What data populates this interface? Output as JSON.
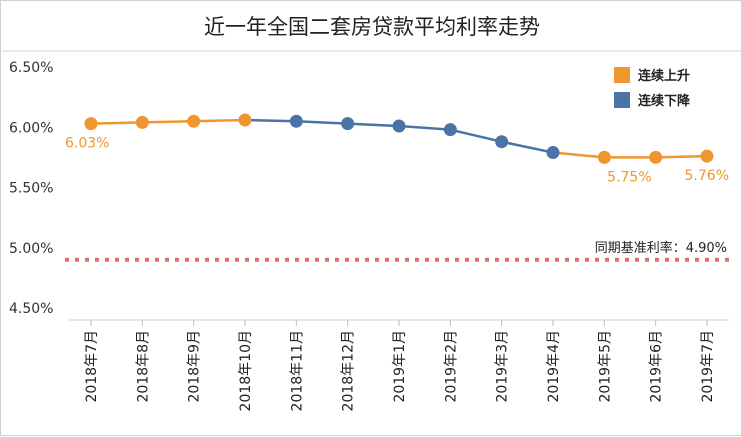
{
  "chart_data": {
    "type": "line",
    "title": "近一年全国二套房贷款平均利率走势",
    "categories": [
      "2018年7月",
      "2018年8月",
      "2018年9月",
      "2018年10月",
      "2018年11月",
      "2018年12月",
      "2019年1月",
      "2019年2月",
      "2019年3月",
      "2019年4月",
      "2019年5月",
      "2019年6月",
      "2019年7月"
    ],
    "values": [
      6.03,
      6.04,
      6.05,
      6.06,
      6.05,
      6.03,
      6.01,
      5.98,
      5.88,
      5.79,
      5.75,
      5.75,
      5.76
    ],
    "segment_trend": [
      "上升",
      "上升",
      "上升",
      "上升",
      "下降",
      "下降",
      "下降",
      "下降",
      "下降",
      "下降",
      "上升",
      "上升",
      "上升"
    ],
    "ylim": [
      4.5,
      6.5
    ],
    "yticks": [
      "4.50%",
      "5.00%",
      "5.50%",
      "6.00%",
      "6.50%"
    ],
    "ytick_values": [
      4.5,
      5.0,
      5.5,
      6.0,
      6.5
    ],
    "legend": [
      {
        "name": "连续上升",
        "color": "#f0962e"
      },
      {
        "name": "连续下降",
        "color": "#4a74a6"
      }
    ],
    "legend_position": "top-right",
    "reference_line": {
      "value": 4.9,
      "label": "同期基准利率：4.90%",
      "color": "#e66a6a"
    },
    "data_labels": [
      {
        "index": 0,
        "text": "6.03%"
      },
      {
        "index": 11,
        "text": "5.75%"
      },
      {
        "index": 12,
        "text": "5.76%"
      }
    ],
    "colors": {
      "up": "#f0962e",
      "down": "#4a74a6",
      "grid": "#dddddd"
    },
    "grid": false
  }
}
